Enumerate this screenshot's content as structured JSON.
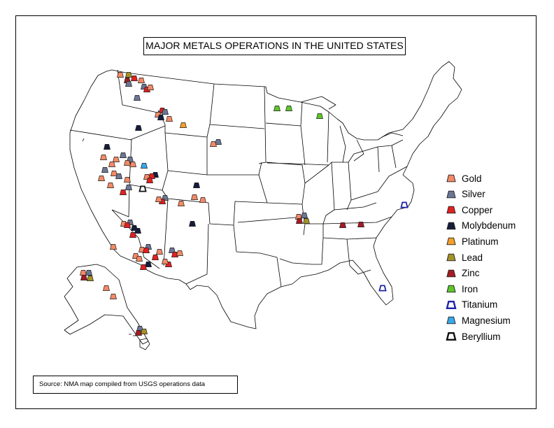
{
  "title": "MAJOR METALS OPERATIONS IN THE UNITED STATES",
  "source": "Source: NMA map compiled from USGS operations data",
  "colors": {
    "Gold": "#f28a66",
    "Silver": "#6c7796",
    "Copper": "#e32020",
    "Molybdenum": "#151d3b",
    "Platinum": "#f5a02a",
    "Lead": "#a49226",
    "Zinc": "#a31c22",
    "Iron": "#5ec62c",
    "Titanium": "#1c25a8",
    "Magnesium": "#39a9ea",
    "Beryllium": "#111111"
  },
  "legend": [
    {
      "metal": "Gold",
      "label": "Gold"
    },
    {
      "metal": "Silver",
      "label": "Silver"
    },
    {
      "metal": "Copper",
      "label": "Copper"
    },
    {
      "metal": "Molybdenum",
      "label": "Molybdenum"
    },
    {
      "metal": "Platinum",
      "label": "Platinum"
    },
    {
      "metal": "Lead",
      "label": "Lead"
    },
    {
      "metal": "Zinc",
      "label": "Zinc"
    },
    {
      "metal": "Iron",
      "label": "Iron"
    },
    {
      "metal": "Titanium",
      "label": "Titanium"
    },
    {
      "metal": "Magnesium",
      "label": "Magnesium"
    },
    {
      "metal": "Beryllium",
      "label": "Beryllium"
    }
  ]
}
